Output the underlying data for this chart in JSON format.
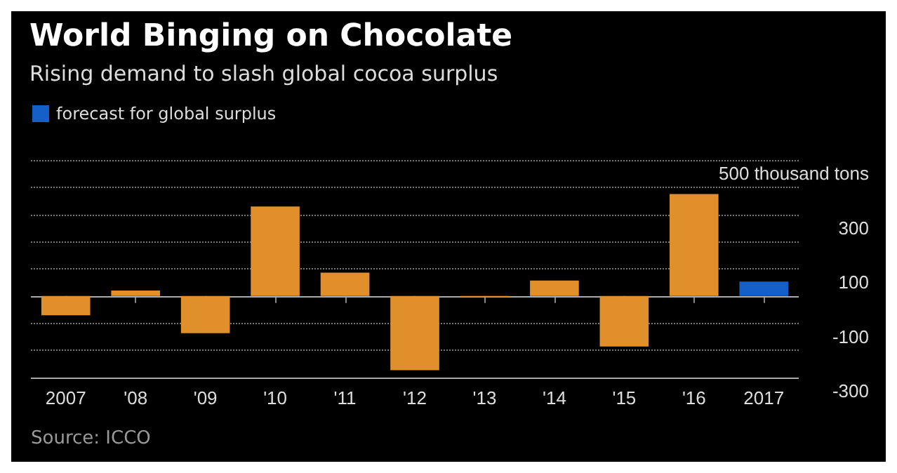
{
  "chart_data": {
    "type": "bar",
    "title": "World Binging on Chocolate",
    "subtitle": "Rising demand to slash global cocoa surplus",
    "categories": [
      "2007",
      "'08",
      "'09",
      "'10",
      "'11",
      "'12",
      "'13",
      "'14",
      "'15",
      "'16",
      "2017"
    ],
    "series": [
      {
        "color": "#e08f2a",
        "values": [
          -71,
          20,
          -137,
          329,
          86,
          -273,
          -4,
          57,
          -186,
          375,
          null
        ]
      },
      {
        "name": "forecast for global surplus",
        "color": "#1560c8",
        "values": [
          null,
          null,
          null,
          null,
          null,
          null,
          null,
          null,
          null,
          null,
          53
        ]
      }
    ],
    "ylim": [
      -300,
      500
    ],
    "yticks": [
      {
        "value": -300,
        "label": "-300"
      },
      {
        "value": -200,
        "label": null
      },
      {
        "value": -100,
        "label": "-100"
      },
      {
        "value": 0,
        "label": null
      },
      {
        "value": 100,
        "label": "100"
      },
      {
        "value": 200,
        "label": null
      },
      {
        "value": 300,
        "label": "300"
      },
      {
        "value": 400,
        "label": null
      },
      {
        "value": 500,
        "label": "500 thousand tons"
      }
    ],
    "grid": "y",
    "legend": "top left",
    "line_style": "dotted",
    "annotations": [
      "Source: ICCO"
    ]
  }
}
